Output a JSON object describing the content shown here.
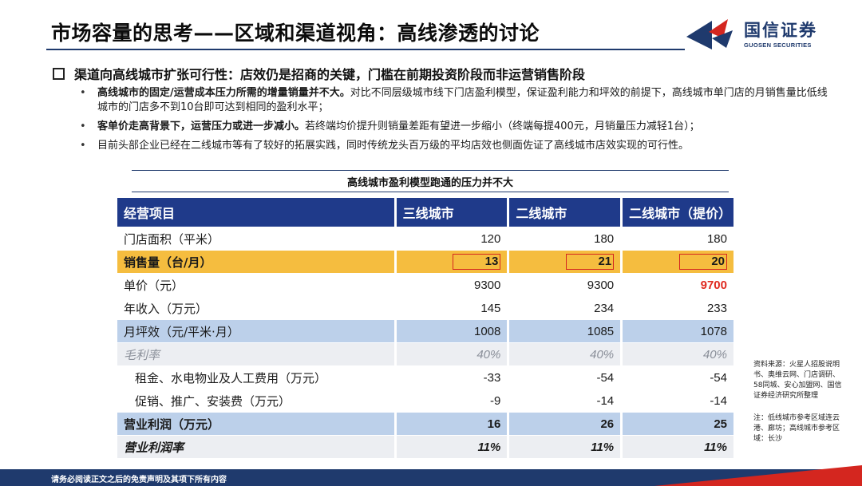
{
  "title": "市场容量的思考——区域和渠道视角：高线渗透的讨论",
  "logo": {
    "cn": "国信证券",
    "en": "GUOSEN SECURITIES",
    "colors": {
      "red": "#d4261f",
      "navy": "#1f3a6d"
    }
  },
  "headline": "渠道向高线城市扩张可行性：店效仍是招商的关键，门槛在前期投资阶段而非运营销售阶段",
  "bullets": [
    {
      "bold": "高线城市的固定/运营成本压力所需的增量销量并不大。",
      "text": "对比不同层级城市线下门店盈利模型，保证盈利能力和坪效的前提下，高线城市单门店的月销售量比低线城市的门店多不到10台即可达到相同的盈利水平；"
    },
    {
      "bold": "客单价走高背景下，运营压力或进一步减小。",
      "text": "若终端均价提升则销量差距有望进一步缩小（终端每提400元，月销量压力减轻1台）；"
    },
    {
      "bold": "",
      "text": "目前头部企业已经在二线城市等有了较好的拓展实践，同时传统龙头百万级的平均店效也侧面佐证了高线城市店效实现的可行性。"
    }
  ],
  "table": {
    "caption": "高线城市盈利模型跑通的压力并不大",
    "headers": [
      "经营项目",
      "三线城市",
      "二线城市",
      "二线城市（提价）"
    ],
    "rows": [
      {
        "label": "门店面积（平米）",
        "values": [
          "120",
          "180",
          "180"
        ]
      },
      {
        "label": "销售量（台/月）",
        "values": [
          "13",
          "21",
          "20"
        ]
      },
      {
        "label": "单价（元）",
        "values": [
          "9300",
          "9300",
          "9700"
        ]
      },
      {
        "label": "年收入（万元）",
        "values": [
          "145",
          "234",
          "233"
        ]
      },
      {
        "label": "月坪效（元/平米·月）",
        "values": [
          "1008",
          "1085",
          "1078"
        ]
      },
      {
        "label": "毛利率",
        "values": [
          "40%",
          "40%",
          "40%"
        ]
      },
      {
        "label": "租金、水电物业及人工费用（万元）",
        "values": [
          "-33",
          "-54",
          "-54"
        ]
      },
      {
        "label": "促销、推广、安装费（万元）",
        "values": [
          "-9",
          "-14",
          "-14"
        ]
      },
      {
        "label": "营业利润（万元）",
        "values": [
          "16",
          "26",
          "25"
        ]
      },
      {
        "label": "营业利润率",
        "values": [
          "11%",
          "11%",
          "11%"
        ]
      }
    ]
  },
  "notes": {
    "source": "资料来源：火星人招股说明书、奥维云网、门店调研、58同城、安心加盟网、国信证券经济研究所整理",
    "note": "注：低线城市参考区域连云港、廊坊；高线城市参考区域：长沙"
  },
  "footer": "请务必阅读正文之后的免责声明及其项下所有内容"
}
